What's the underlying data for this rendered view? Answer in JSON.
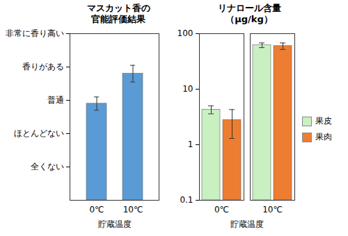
{
  "chart_data": [
    {
      "type": "bar",
      "title": "マスカット香の\n官能評価結果",
      "categories": [
        "0℃",
        "10℃"
      ],
      "values": [
        2.9,
        3.8
      ],
      "errors": [
        0.2,
        0.25
      ],
      "color": "#5b9bd5",
      "xlabel": "貯蔵温度",
      "ylim": [
        0,
        5
      ],
      "yticks": [
        {
          "value": 1,
          "label": "全くない"
        },
        {
          "value": 2,
          "label": "ほとんどない"
        },
        {
          "value": 3,
          "label": "普通"
        },
        {
          "value": 4,
          "label": "香りがある"
        },
        {
          "value": 5,
          "label": "非常に香り高い"
        }
      ]
    },
    {
      "type": "bar",
      "title": "リナロール含量\n（μg/kg）",
      "categories": [
        "0℃",
        "10℃"
      ],
      "xlabel": "貯蔵温度",
      "series": [
        {
          "name": "果皮",
          "color": "#c8f0c0",
          "values": [
            4.3,
            62
          ],
          "errors": [
            0.7,
            6
          ]
        },
        {
          "name": "果肉",
          "color": "#ed7d31",
          "values": [
            2.8,
            60
          ],
          "errors": [
            1.5,
            8
          ]
        }
      ],
      "log": "y",
      "ylim": [
        0.1,
        100
      ],
      "yticks": [
        0.1,
        1,
        10,
        100
      ],
      "legend": "right"
    }
  ]
}
